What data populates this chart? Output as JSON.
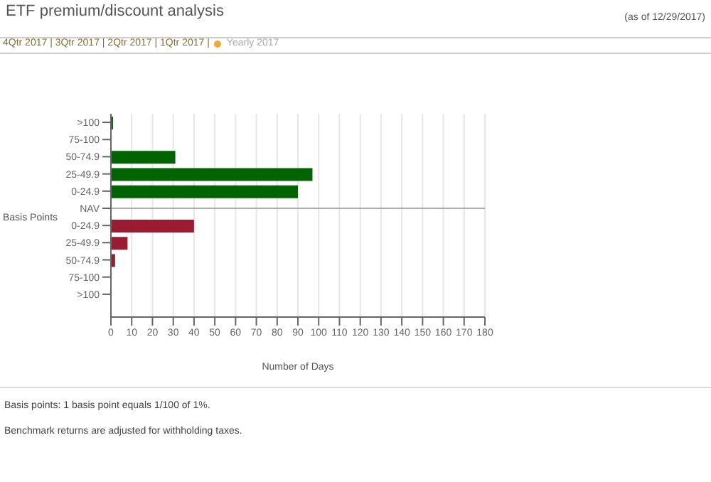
{
  "chart_data": {
    "type": "bar",
    "orientation": "horizontal",
    "title": "ETF premium/discount analysis",
    "subtitle": "(as of 12/29/2017)",
    "xlabel": "Number of Days",
    "ylabel": "Basis Points",
    "categories": [
      ">100",
      "75-100",
      "50-74.9",
      "25-49.9",
      "0-24.9",
      "NAV",
      "0-24.9",
      "25-49.9",
      "50-74.9",
      "75-100",
      ">100"
    ],
    "values": [
      1,
      0,
      31,
      97,
      90,
      null,
      40,
      8,
      2,
      0,
      0
    ],
    "colors": [
      "#006400",
      "#006400",
      "#006400",
      "#006400",
      "#006400",
      "#006400",
      "#9b1b30",
      "#9b1b30",
      "#9b1b30",
      "#9b1b30",
      "#9b1b30"
    ],
    "xlim": [
      0,
      180
    ],
    "xticks": [
      0,
      10,
      20,
      30,
      40,
      50,
      60,
      70,
      80,
      90,
      100,
      110,
      120,
      130,
      140,
      150,
      160,
      170,
      180
    ],
    "grid": "x",
    "ref_lines": [
      {
        "axis": "y",
        "value": "NAV",
        "color": "#aaaaaa"
      }
    ],
    "annotations": [
      "4Qtr 2017 | 3Qtr 2017 | 2Qtr 2017 | 1Qtr 2017 |",
      "Yearly 2017",
      "Basis points: 1 basis point equals 1/100 of 1%.",
      "Benchmark returns are adjusted for withholding taxes."
    ]
  }
}
